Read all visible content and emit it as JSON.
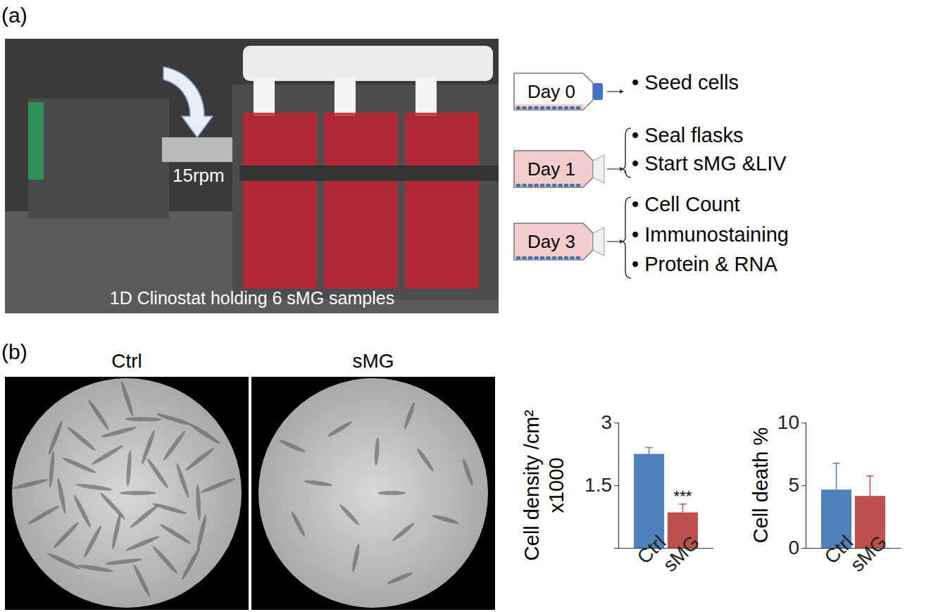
{
  "panel_labels": [
    "(a)",
    "(b)"
  ],
  "photo": {
    "caption": "1D Clinostat holding 6 sMG samples",
    "speed": "15rpm"
  },
  "timeline": [
    {
      "day": "Day 0",
      "items": [
        "• Seed cells"
      ]
    },
    {
      "day": "Day 1",
      "items": [
        "• Seal flasks",
        "• Start sMG &LIV"
      ]
    },
    {
      "day": "Day 3",
      "items": [
        "• Cell Count",
        "• Immunostaining",
        "• Protein & RNA"
      ]
    }
  ],
  "micrographs": [
    "Ctrl",
    "sMG"
  ],
  "chart_data": [
    {
      "type": "bar",
      "y_label": [
        "Cell density /cm²",
        "x1000"
      ],
      "categories": [
        "Ctrl",
        "sMG"
      ],
      "values": [
        2.25,
        0.85
      ],
      "errors": [
        0.15,
        0.2
      ],
      "colors": [
        "#4f81bd",
        "#c0504d"
      ],
      "ylim": [
        0,
        3
      ],
      "yticks": [
        1.5,
        3
      ],
      "annotations": [
        {
          "text": "***",
          "category": "sMG"
        }
      ]
    },
    {
      "type": "bar",
      "y_label": [
        "Cell death %"
      ],
      "categories": [
        "Ctrl",
        "sMG"
      ],
      "values": [
        4.65,
        4.15
      ],
      "errors": [
        2.1,
        1.6
      ],
      "colors": [
        "#4f81bd",
        "#c0504d"
      ],
      "ylim": [
        0,
        10
      ],
      "yticks": [
        0,
        5,
        10
      ]
    }
  ]
}
